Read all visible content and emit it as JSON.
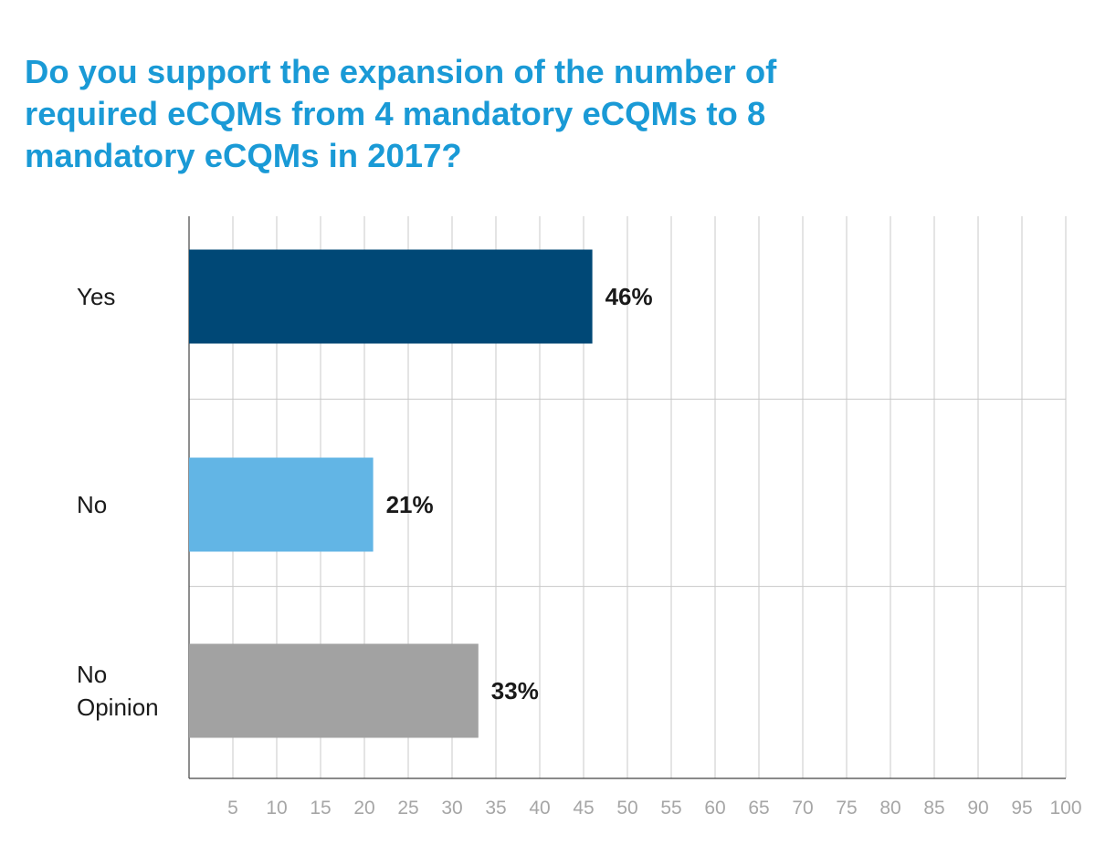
{
  "chart_data": {
    "type": "bar",
    "orientation": "horizontal",
    "title": "Do you support the expansion of the number of required eCQMs from 4 mandatory eCQMs to 8 mandatory eCQMs in 2017?",
    "categories": [
      "Yes",
      "No",
      "No Opinion"
    ],
    "values": [
      46,
      21,
      33
    ],
    "value_labels": [
      "46%",
      "21%",
      "33%"
    ],
    "colors": [
      "#004876",
      "#62b5e5",
      "#a2a2a2"
    ],
    "xlim": [
      0,
      100
    ],
    "xticks": [
      5,
      10,
      15,
      20,
      25,
      30,
      35,
      40,
      45,
      50,
      55,
      60,
      65,
      70,
      75,
      80,
      85,
      90,
      95,
      100
    ],
    "xtick_labels": [
      "5",
      "10",
      "15",
      "20",
      "25",
      "30",
      "35",
      "40",
      "45",
      "50",
      "55",
      "60",
      "65",
      "70",
      "75",
      "80",
      "85",
      "90",
      "95",
      "100"
    ],
    "grid": true,
    "title_color": "#1a9ad6",
    "grid_color": "#c8c8c8",
    "tick_label_color": "#a6a6a6"
  }
}
